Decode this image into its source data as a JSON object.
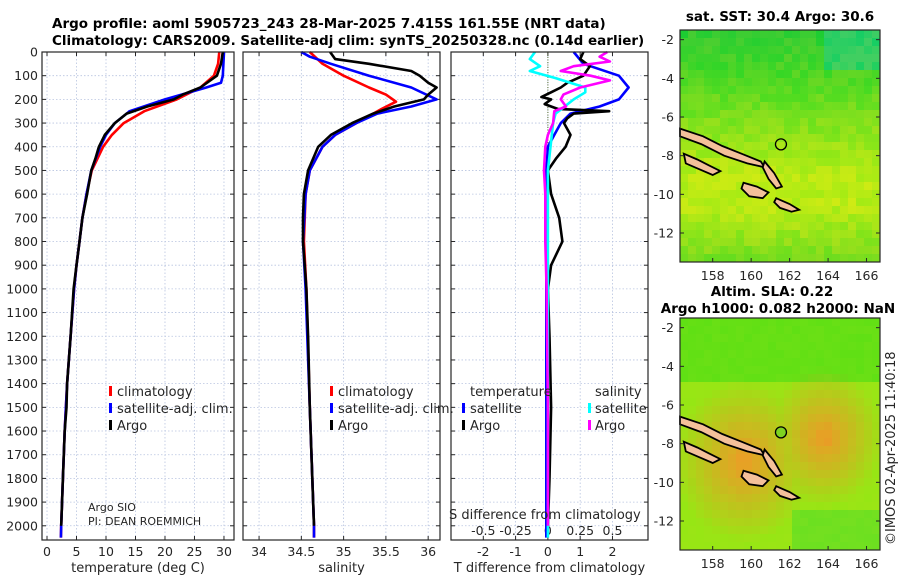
{
  "header": {
    "title_line1": "Argo profile: aoml 5905723_243 28-Mar-2025 7.415S 161.55E (NRT data)",
    "title_line2": "Climatology: CARS2009. Satellite-adj clim: synTS_20250328.nc (0.14d earlier)"
  },
  "colors": {
    "climatology": "#ff0000",
    "satellite": "#0000ff",
    "argo": "#000000",
    "s_satellite": "#00ffff",
    "s_argo": "#ff00ff"
  },
  "chart_data": [
    {
      "type": "line",
      "name": "temperature",
      "xlabel": "temperature (deg C)",
      "ylabel": "",
      "xlim": [
        -0.85,
        31.7
      ],
      "ylim": [
        2060,
        0
      ],
      "xticks": [
        0,
        5,
        10,
        15,
        20,
        25,
        30
      ],
      "yticks": [
        0,
        100,
        200,
        300,
        400,
        500,
        600,
        700,
        800,
        900,
        1000,
        1100,
        1200,
        1300,
        1400,
        1500,
        1600,
        1700,
        1800,
        1900,
        2000
      ],
      "grid": true,
      "legend": [
        "climatology",
        "satellite-adj. clim.",
        "Argo"
      ],
      "legend_position": "lower-center",
      "annotation": [
        "Argo SIO",
        "PI: DEAN ROEMMICH"
      ],
      "series": [
        {
          "name": "climatology",
          "color": "#ff0000",
          "depth": [
            0,
            50,
            100,
            150,
            200,
            250,
            300,
            350,
            400,
            500,
            600,
            700,
            800,
            900,
            1000,
            1200,
            1400,
            1600,
            1800,
            2000,
            2050
          ],
          "values": [
            29.2,
            29.0,
            28.3,
            26.0,
            22.0,
            16.5,
            13.0,
            11.0,
            9.5,
            7.6,
            6.7,
            6.0,
            5.5,
            5.0,
            4.6,
            4.0,
            3.4,
            3.0,
            2.7,
            2.4,
            2.35
          ]
        },
        {
          "name": "satellite-adj. clim.",
          "color": "#0000ff",
          "depth": [
            0,
            50,
            100,
            130,
            150,
            200,
            250,
            300,
            350,
            400,
            500,
            600,
            700,
            800,
            900,
            1000,
            1200,
            1400,
            1600,
            1800,
            2000,
            2050
          ],
          "values": [
            30.0,
            29.9,
            29.8,
            29.5,
            27.0,
            20.0,
            14.0,
            11.5,
            10.0,
            9.0,
            7.5,
            6.7,
            6.0,
            5.5,
            5.0,
            4.6,
            4.0,
            3.4,
            3.0,
            2.7,
            2.4,
            2.35
          ]
        },
        {
          "name": "Argo",
          "color": "#000000",
          "depth": [
            0,
            50,
            100,
            150,
            180,
            200,
            230,
            260,
            300,
            350,
            400,
            450,
            500,
            600,
            700,
            800,
            900,
            1000,
            1200,
            1400,
            1500,
            1600,
            1800,
            2000
          ],
          "values": [
            29.8,
            29.5,
            28.8,
            26.0,
            23.0,
            21.5,
            17.0,
            13.5,
            11.5,
            9.8,
            8.8,
            8.2,
            7.5,
            6.8,
            6.0,
            5.5,
            5.0,
            4.5,
            4.0,
            3.4,
            3.3,
            3.0,
            2.7,
            2.4
          ]
        }
      ]
    },
    {
      "type": "line",
      "name": "salinity",
      "xlabel": "salinity",
      "xlim": [
        33.81,
        36.14
      ],
      "ylim": [
        2060,
        0
      ],
      "xticks": [
        34,
        34.5,
        35,
        35.5,
        36
      ],
      "grid": true,
      "legend": [
        "climatology",
        "satellite-adj. clim.",
        "Argo"
      ],
      "legend_position": "lower-center",
      "series": [
        {
          "name": "climatology",
          "color": "#ff0000",
          "depth": [
            0,
            50,
            100,
            150,
            180,
            210,
            240,
            270,
            300,
            350,
            400,
            500,
            600,
            800,
            1000,
            1500,
            2000,
            2050
          ],
          "values": [
            34.6,
            34.75,
            35.0,
            35.3,
            35.5,
            35.62,
            35.45,
            35.3,
            35.15,
            34.9,
            34.75,
            34.6,
            34.55,
            34.53,
            34.56,
            34.6,
            34.65,
            34.65
          ]
        },
        {
          "name": "satellite-adj. clim.",
          "color": "#0000ff",
          "depth": [
            0,
            20,
            50,
            100,
            150,
            200,
            230,
            260,
            300,
            350,
            400,
            500,
            600,
            800,
            1000,
            1500,
            2000,
            2050
          ],
          "values": [
            34.5,
            34.6,
            34.85,
            35.3,
            35.8,
            36.1,
            35.8,
            35.4,
            35.15,
            34.9,
            34.75,
            34.6,
            34.55,
            34.52,
            34.55,
            34.6,
            34.65,
            34.65
          ]
        },
        {
          "name": "Argo",
          "color": "#000000",
          "depth": [
            0,
            30,
            50,
            80,
            100,
            130,
            150,
            180,
            200,
            230,
            260,
            300,
            350,
            400,
            500,
            600,
            700,
            800,
            1000,
            1200,
            1500,
            1800,
            2000
          ],
          "values": [
            34.84,
            34.9,
            35.3,
            35.8,
            35.9,
            36.0,
            36.1,
            36.0,
            35.95,
            35.6,
            35.35,
            35.1,
            34.85,
            34.7,
            34.58,
            34.53,
            34.52,
            34.52,
            34.56,
            34.58,
            34.6,
            34.63,
            34.65
          ]
        }
      ]
    },
    {
      "type": "line",
      "name": "difference",
      "xlabel": "T difference from climatology",
      "xlabel_top": "S difference from climatology",
      "xlim": [
        -3.0,
        3.1
      ],
      "xlim_s": [
        -0.75,
        0.775
      ],
      "ylim": [
        2060,
        0
      ],
      "xticks": [
        -2,
        -1,
        0,
        1,
        2
      ],
      "xticks_s": [
        "-0.5",
        "-0.25",
        "0",
        "0.25",
        "0.5"
      ],
      "grid": true,
      "legend_t": {
        "title": "temperature",
        "items": [
          "satellite",
          "Argo"
        ]
      },
      "legend_s": {
        "title": "salinity",
        "items": [
          "satellite",
          "Argo"
        ]
      },
      "series": [
        {
          "name": "T satellite",
          "color": "#0000ff",
          "units": "T",
          "depth": [
            0,
            50,
            100,
            150,
            200,
            230,
            260,
            300,
            350,
            400,
            500,
            600,
            800,
            1000,
            1500,
            2000,
            2050
          ],
          "values": [
            0.8,
            1.1,
            2.2,
            2.5,
            2.2,
            1.6,
            0.7,
            0.4,
            0.2,
            0.0,
            -0.05,
            -0.05,
            -0.05,
            -0.05,
            -0.05,
            -0.05,
            -0.05
          ]
        },
        {
          "name": "T Argo",
          "color": "#000000",
          "units": "T",
          "depth": [
            0,
            30,
            60,
            100,
            130,
            150,
            170,
            190,
            200,
            220,
            240,
            250,
            260,
            280,
            300,
            350,
            400,
            450,
            500,
            600,
            700,
            800,
            900,
            1000,
            1200,
            1500,
            1800,
            2000
          ],
          "values": [
            1.1,
            1.0,
            1.3,
            1.1,
            0.6,
            0.4,
            0.1,
            -0.2,
            0.1,
            -0.1,
            0.3,
            1.9,
            0.8,
            0.6,
            0.5,
            0.7,
            0.55,
            0.25,
            0.0,
            0.1,
            0.35,
            0.45,
            0.1,
            0.0,
            0.05,
            0.1,
            0.05,
            0.0
          ]
        },
        {
          "name": "S satellite",
          "color": "#00ffff",
          "units": "S",
          "depth": [
            0,
            30,
            60,
            80,
            110,
            150,
            170,
            200,
            230,
            260,
            300,
            400,
            500,
            700,
            1000,
            1500,
            2000,
            2050
          ],
          "values": [
            -0.1,
            -0.14,
            -0.06,
            -0.14,
            0.06,
            0.29,
            0.29,
            0.2,
            0.13,
            0.06,
            0.04,
            0.02,
            0.0,
            0.0,
            0.0,
            0.0,
            0.0,
            0.0
          ]
        },
        {
          "name": "S Argo",
          "color": "#ff00ff",
          "units": "S",
          "depth": [
            0,
            20,
            40,
            60,
            80,
            100,
            120,
            150,
            180,
            200,
            230,
            250,
            300,
            350,
            400,
            500,
            600,
            800,
            1000,
            1500,
            2000
          ],
          "values": [
            0.46,
            0.4,
            0.48,
            0.2,
            0.1,
            0.33,
            0.48,
            0.25,
            0.12,
            0.1,
            0.14,
            0.05,
            0.04,
            0.0,
            -0.02,
            -0.03,
            -0.02,
            -0.02,
            -0.01,
            0.0,
            0.0
          ]
        }
      ]
    },
    {
      "type": "heatmap",
      "name": "sst-map",
      "title": "sat. SST: 30.4 Argo: 30.6",
      "xlim": [
        156.3,
        166.7
      ],
      "ylim": [
        -13.5,
        -1.5
      ],
      "xticks": [
        158,
        160,
        162,
        164,
        166
      ],
      "yticks": [
        -2,
        -4,
        -6,
        -8,
        -10,
        -12
      ],
      "marker": {
        "lon": 161.55,
        "lat": -7.415
      }
    },
    {
      "type": "heatmap",
      "name": "sla-map",
      "title_line1": "Altim. SLA: 0.22",
      "title_line2": "Argo h1000: 0.082 h2000: NaN",
      "xlim": [
        156.3,
        166.7
      ],
      "ylim": [
        -13.5,
        -1.5
      ],
      "xticks": [
        158,
        160,
        162,
        164,
        166
      ],
      "yticks": [
        -2,
        -4,
        -6,
        -8,
        -10,
        -12
      ],
      "marker": {
        "lon": 161.55,
        "lat": -7.415
      }
    }
  ],
  "footer": {
    "copyright": "©IMOS 02-Apr-2025 11:40:18"
  }
}
